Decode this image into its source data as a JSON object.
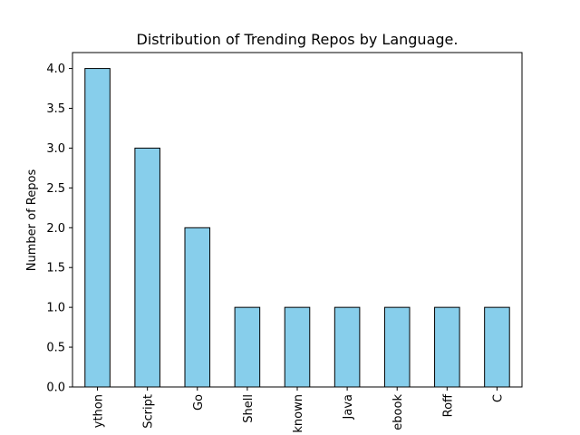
{
  "chart_data": {
    "type": "bar",
    "title": "Distribution of Trending Repos by Language.",
    "xlabel": "",
    "ylabel": "Number of Repos",
    "categories": [
      "ython",
      "Script",
      "Go",
      "Shell",
      "known",
      "Java",
      "ebook",
      "Roff",
      "C"
    ],
    "values": [
      4,
      3,
      2,
      1,
      1,
      1,
      1,
      1,
      1
    ],
    "ylim": [
      0,
      4.2
    ],
    "yticks": [
      0.0,
      0.5,
      1.0,
      1.5,
      2.0,
      2.5,
      3.0,
      3.5,
      4.0
    ],
    "ytick_labels": [
      "0.0",
      "0.5",
      "1.0",
      "1.5",
      "2.0",
      "2.5",
      "3.0",
      "3.5",
      "4.0"
    ],
    "grid": false,
    "legend": "none",
    "bar_color": "#87ceeb",
    "edge_color": "#000000"
  }
}
